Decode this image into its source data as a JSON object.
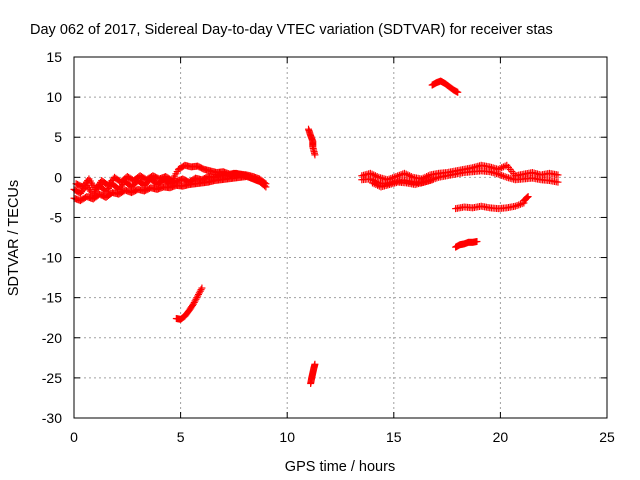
{
  "chart_data": {
    "type": "scatter",
    "title": "Day 062 of 2017, Sidereal Day-to-day VTEC variation (SDTVAR) for receiver stas",
    "xlabel": "GPS time / hours",
    "ylabel": "SDTVAR / TECUs",
    "xlim": [
      0,
      25
    ],
    "ylim": [
      -30,
      15
    ],
    "xticks": [
      0,
      5,
      10,
      15,
      20,
      25
    ],
    "yticks": [
      -30,
      -25,
      -20,
      -15,
      -10,
      -5,
      0,
      5,
      10,
      15
    ],
    "grid": true,
    "marker": "plus",
    "series": [
      {
        "name": "SDTVAR",
        "color": "#ff0000",
        "segments": [
          {
            "x": [
              0.0,
              0.3,
              0.6,
              0.9,
              1.2,
              1.5,
              1.8,
              2.1,
              2.4,
              2.7,
              3.0,
              3.3,
              3.6,
              3.9,
              4.2,
              4.5,
              4.8,
              5.1,
              5.4,
              5.7,
              6.0,
              6.3,
              6.6,
              6.9,
              7.2,
              7.5,
              7.8,
              8.1,
              8.4,
              8.7,
              9.0
            ],
            "y": [
              -1.5,
              -2.0,
              -1.0,
              -2.2,
              -1.0,
              -1.8,
              -0.8,
              -1.5,
              -0.5,
              -1.2,
              -0.4,
              -1.0,
              -0.2,
              -0.9,
              -0.3,
              -0.8,
              -0.5,
              -0.2,
              -0.6,
              -0.1,
              -0.3,
              0.1,
              0.0,
              0.3,
              0.2,
              0.5,
              0.4,
              0.3,
              0.1,
              -0.2,
              -0.8
            ]
          },
          {
            "x": [
              0.0,
              0.3,
              0.6,
              0.9,
              1.2,
              1.5,
              1.8,
              2.1,
              2.4,
              2.7,
              3.0,
              3.3,
              3.6,
              3.9,
              4.2,
              4.5,
              4.8,
              5.1,
              5.4,
              5.7,
              6.0,
              6.3,
              6.6,
              6.9,
              7.2,
              7.5,
              7.8,
              8.1,
              8.4,
              8.7,
              9.0
            ],
            "y": [
              -2.6,
              -2.9,
              -2.4,
              -2.7,
              -2.1,
              -2.5,
              -1.9,
              -2.1,
              -1.6,
              -1.9,
              -1.5,
              -1.7,
              -1.3,
              -1.5,
              -1.2,
              -1.3,
              -1.0,
              -1.1,
              -0.9,
              -0.8,
              -0.7,
              -0.6,
              -0.4,
              -0.3,
              -0.2,
              -0.1,
              0.0,
              0.1,
              -0.2,
              -0.5,
              -1.2
            ]
          },
          {
            "x": [
              0.1,
              0.4,
              0.7,
              1.0,
              1.3,
              1.6,
              1.9,
              2.2,
              2.5,
              2.8,
              3.1,
              3.4,
              3.7,
              4.0,
              4.3,
              4.6,
              4.9,
              5.2,
              5.5,
              5.8,
              6.1,
              6.4,
              6.7,
              7.0,
              7.3,
              7.6,
              7.9,
              8.2,
              8.5,
              8.8
            ],
            "y": [
              -0.8,
              -1.2,
              -0.2,
              -1.5,
              -0.4,
              -1.0,
              0.0,
              -0.6,
              0.1,
              -0.4,
              0.2,
              -0.3,
              0.2,
              -0.2,
              0.1,
              -0.4,
              1.0,
              1.5,
              1.3,
              1.4,
              1.0,
              0.8,
              0.6,
              0.7,
              0.4,
              0.5,
              0.3,
              0.1,
              -0.3,
              -0.6
            ]
          },
          {
            "x": [
              4.8,
              5.0,
              5.2,
              5.4,
              5.6,
              5.8,
              6.0
            ],
            "y": [
              -17.6,
              -17.7,
              -17.3,
              -16.6,
              -15.8,
              -14.8,
              -13.8
            ]
          },
          {
            "x": [
              11.0,
              11.1,
              11.2,
              11.2,
              11.3
            ],
            "y": [
              6.0,
              5.2,
              4.5,
              3.8,
              2.8
            ]
          },
          {
            "x": [
              11.1,
              11.15,
              11.2,
              11.25,
              11.3
            ],
            "y": [
              -25.7,
              -25.0,
              -24.4,
              -23.8,
              -23.3
            ]
          },
          {
            "x": [
              13.5,
              13.9,
              14.3,
              14.7,
              15.1,
              15.5,
              15.9,
              16.3,
              16.7,
              17.1,
              17.5,
              17.9,
              18.3,
              18.7,
              19.1,
              19.5,
              19.9,
              20.3,
              20.7,
              21.1,
              21.5,
              21.9,
              22.3,
              22.7
            ],
            "y": [
              0.2,
              0.5,
              0.0,
              -0.3,
              0.1,
              0.5,
              0.0,
              -0.2,
              0.3,
              0.5,
              0.6,
              0.8,
              1.0,
              1.2,
              1.5,
              1.3,
              1.0,
              1.5,
              0.2,
              0.4,
              0.6,
              0.3,
              0.5,
              0.3
            ]
          },
          {
            "x": [
              13.5,
              13.9,
              14.3,
              14.7,
              15.1,
              15.5,
              15.9,
              16.3,
              16.7,
              17.1,
              17.5,
              17.9,
              18.3,
              18.7,
              19.1,
              19.5,
              19.9,
              20.3,
              20.7,
              21.1,
              21.5,
              21.9,
              22.3,
              22.7
            ],
            "y": [
              -0.3,
              -0.2,
              -0.7,
              -0.8,
              -0.5,
              -0.4,
              -0.6,
              -0.7,
              -0.4,
              0.0,
              0.2,
              0.4,
              0.6,
              0.7,
              0.8,
              0.7,
              0.4,
              0.0,
              -0.3,
              -0.2,
              -0.1,
              -0.3,
              -0.4,
              -0.6
            ]
          },
          {
            "x": [
              14.0,
              14.4,
              14.8,
              15.2,
              15.6,
              16.0,
              16.4,
              16.8
            ],
            "y": [
              -0.7,
              -1.2,
              -0.9,
              -0.6,
              -0.7,
              -0.9,
              -0.6,
              -0.3
            ]
          },
          {
            "x": [
              16.8,
              17.0,
              17.2,
              17.4,
              17.6,
              17.8,
              18.0
            ],
            "y": [
              11.5,
              11.8,
              12.0,
              11.7,
              11.3,
              10.9,
              10.6
            ]
          },
          {
            "x": [
              17.9,
              18.3,
              18.7,
              19.1,
              19.5,
              19.9,
              20.3,
              20.7,
              21.1
            ],
            "y": [
              -3.9,
              -3.7,
              -3.8,
              -3.6,
              -3.8,
              -3.9,
              -3.8,
              -3.6,
              -3.2
            ]
          },
          {
            "x": [
              21.1,
              21.3
            ],
            "y": [
              -2.9,
              -2.4
            ]
          },
          {
            "x": [
              17.9,
              18.1,
              18.3,
              18.5,
              18.7,
              18.9
            ],
            "y": [
              -8.7,
              -8.4,
              -8.3,
              -8.1,
              -8.1,
              -8.0
            ]
          }
        ]
      }
    ]
  }
}
